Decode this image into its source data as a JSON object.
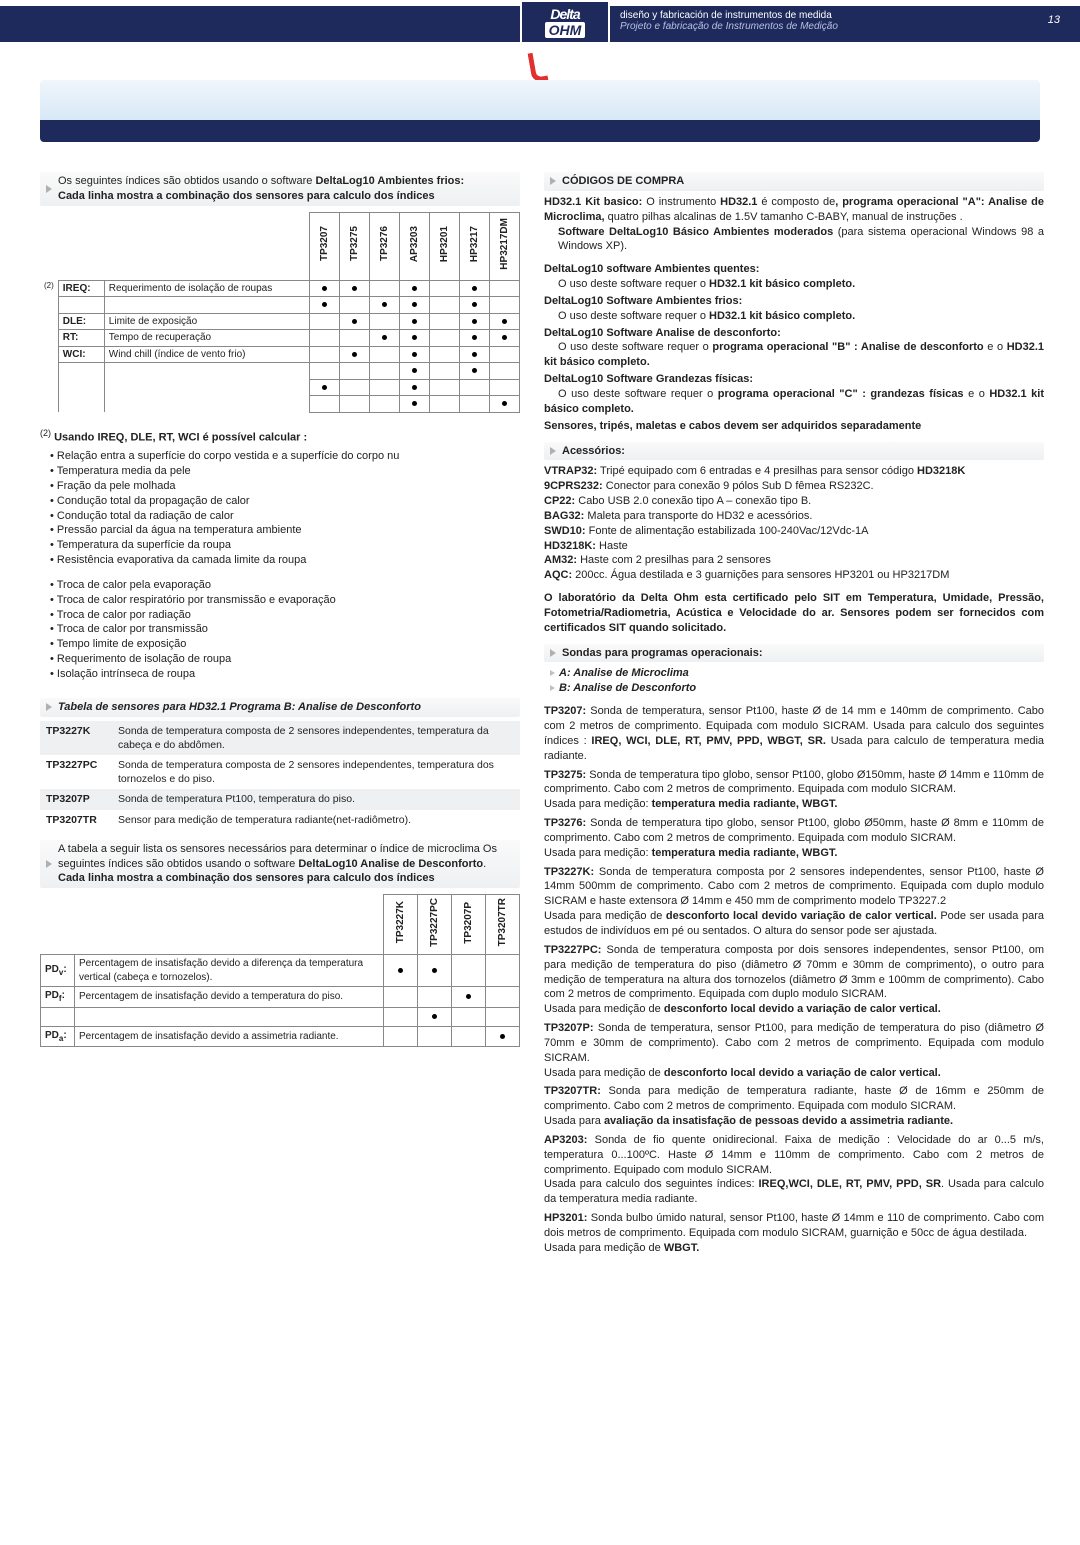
{
  "header": {
    "tagline_es": "diseño y fabricación de instrumentos de medida",
    "tagline_pt": "Projeto e fabricação de Instrumentos de Medição",
    "logo_top": "Delta",
    "logo_bot": "OHM",
    "pagenum": "13"
  },
  "left": {
    "intro1": "Os seguintes índices são obtidos usando o software ",
    "intro1b": "DeltaLog10 Ambientes frios:",
    "intro2": "Cada linha mostra a combinação dos sensores para calculo dos índices",
    "tbl1": {
      "cols": [
        "TP3207",
        "TP3275",
        "TP3276",
        "AP3203",
        "HP3201",
        "HP3217",
        "HP3217DM"
      ],
      "rows": [
        {
          "note": "(2)",
          "lab": "IREQ:",
          "desc": "Requerimento de isolação de roupas",
          "dots": [
            1,
            1,
            0,
            1,
            0,
            1,
            0
          ]
        },
        {
          "note": "",
          "lab": "",
          "desc": "",
          "dots": [
            1,
            0,
            1,
            1,
            0,
            1,
            0
          ]
        },
        {
          "note": "",
          "lab": "DLE:",
          "desc": "Limite de exposição",
          "dots": [
            0,
            1,
            0,
            1,
            0,
            1,
            1
          ]
        },
        {
          "note": "",
          "lab": "RT:",
          "desc": "Tempo de recuperação",
          "dots": [
            0,
            0,
            1,
            1,
            0,
            1,
            1
          ]
        },
        {
          "note": "",
          "lab": "WCI:",
          "desc": "Wind chill (índice de vento frio)",
          "dots": [
            0,
            1,
            0,
            1,
            0,
            1,
            0
          ]
        },
        {
          "note": "",
          "lab": "",
          "desc": "",
          "dots": [
            0,
            0,
            0,
            1,
            0,
            1,
            0
          ]
        },
        {
          "note": "",
          "lab": "",
          "desc": "",
          "dots": [
            1,
            0,
            0,
            1,
            0,
            0,
            0
          ]
        },
        {
          "note": "",
          "lab": "",
          "desc": "",
          "dots": [
            0,
            0,
            0,
            1,
            0,
            0,
            1
          ]
        }
      ]
    },
    "calc_head": "Usando IREQ, DLE, RT, WCI é possível calcular :",
    "calc_note": "(2)",
    "calc_list1": [
      "Relação entra a superfície do corpo vestida e a superfície do corpo nu",
      "Temperatura media da pele",
      "Fração da pele molhada",
      "Condução total da propagação de calor",
      "Condução total da radiação de calor",
      "Pressão parcial da água na temperatura ambiente",
      "Temperatura da superfície da roupa",
      "Resistência evaporativa da camada limite da roupa"
    ],
    "calc_list2": [
      "Troca de calor pela evaporação",
      "Troca de calor respiratório por transmissão e evaporação",
      "Troca de calor por radiação",
      "Troca de calor por transmissão",
      "Tempo limite de exposição",
      "Requerimento de isolação de roupa",
      "Isolação intrínseca de roupa"
    ],
    "senB_title": "Tabela de sensores para HD32.1 Programa B: Analise de Desconforto",
    "senB": [
      {
        "code": "TP3227K",
        "desc": "Sonda de temperatura composta de 2 sensores independentes, temperatura da cabeça e do abdômen."
      },
      {
        "code": "TP3227PC",
        "desc": "Sonda de temperatura composta de 2 sensores independentes, temperatura dos tornozelos e do piso."
      },
      {
        "code": "TP3207P",
        "desc": "Sonda de temperatura Pt100,  temperatura do piso."
      },
      {
        "code": "TP3207TR",
        "desc": "Sensor para medição de temperatura radiante(net-radiômetro)."
      }
    ],
    "desc_intro1": "A tabela a seguir lista os sensores necessários para determinar o índice de microclima Os seguintes  índices são obtidos usando o software  ",
    "desc_intro1b": "DeltaLog10 Analise de Desconforto",
    "desc_intro2": "Cada linha mostra a combinação dos sensores para calculo dos índices",
    "pd": {
      "cols": [
        "TP3227K",
        "TP3227PC",
        "TP3207P",
        "TP3207TR"
      ],
      "rows": [
        {
          "lab": "PD",
          "sub": "v",
          "desc": "Percentagem de insatisfação devido a diferença da temperatura vertical (cabeça e tornozelos).",
          "dots": [
            1,
            1,
            0,
            0
          ]
        },
        {
          "lab": "PD",
          "sub": "f",
          "desc": "Percentagem de insatisfação devido a temperatura do piso.",
          "dots": [
            0,
            0,
            1,
            0
          ]
        },
        {
          "lab": "",
          "sub": "",
          "desc": "",
          "dots": [
            0,
            1,
            0,
            0
          ]
        },
        {
          "lab": "PD",
          "sub": "a",
          "desc": "Percentagem de insatisfação devido a assimetria radiante.",
          "dots": [
            0,
            0,
            0,
            1
          ]
        }
      ]
    }
  },
  "right": {
    "cod_title": "CÓDIGOS DE COMPRA",
    "kit": {
      "h": "HD32.1 Kit basico:",
      "t1": " O instrumento ",
      "b1": "HD32.1",
      "t2": " é composto de",
      "b2": ", programa operacional \"A\": Analise de Microclima,",
      "t3": " quatro pilhas alcalinas de  1.5V tamanho C-BABY, manual de instruções .",
      "b3": "Software DeltaLog10 Básico Ambientes moderados",
      "t4": " (para sistema operacional Windows 98 a Windows XP)."
    },
    "sw": [
      {
        "h": "DeltaLog10 software Ambientes quentes:",
        "t": "O uso deste software requer o ",
        "b": "HD32.1 kit básico completo."
      },
      {
        "h": "DeltaLog10 Software Ambientes frios:",
        "t": "O uso deste software requer o ",
        "b": "HD32.1 kit básico completo."
      },
      {
        "h": "DeltaLog10 Software Analise de desconforto:",
        "t": "O uso deste software requer o ",
        "b": "programa operacional \"B\" : Analise de desconforto",
        "t2": " e o ",
        "b2": "HD32.1 kit básico completo."
      },
      {
        "h": "DeltaLog10 Software Grandezas físicas:",
        "t": "O uso deste software requer o ",
        "b": "programa operacional \"C\" : grandezas físicas",
        "t2": " e o ",
        "b2": "HD32.1 kit básico completo."
      }
    ],
    "sep_note": "Sensores, tripés, maletas e cabos devem ser adquiridos separadamente",
    "acc_title": "Acessórios:",
    "acc": [
      {
        "c": "VTRAP32:",
        "d": " Tripé equipado com 6 entradas e 4 presilhas para sensor código ",
        "b": "HD3218K"
      },
      {
        "c": "9CPRS232:",
        "d": " Conector para conexão 9 pólos Sub D fêmea RS232C."
      },
      {
        "c": "CP22:",
        "d": " Cabo USB 2.0 conexão tipo A – conexão tipo B."
      },
      {
        "c": "BAG32:",
        "d": " Maleta para transporte do HD32 e acessórios."
      },
      {
        "c": "SWD10:",
        "d": " Fonte de alimentação estabilizada 100-240Vac/12Vdc-1A"
      },
      {
        "c": "HD3218K:",
        "d": " Haste"
      },
      {
        "c": "AM32:",
        "d": " Haste com 2 presilhas para 2 sensores"
      },
      {
        "c": "AQC:",
        "d": " 200cc. Água destilada e 3 guarnições para sensores HP3201 ou HP3217DM"
      }
    ],
    "lab_cert": "O laboratório da Delta Ohm esta certificado pelo SIT em Temperatura, Umidade, Pressão, Fotometria/Radiometria, Acústica e Velocidade do ar. Sensores podem ser fornecidos com certificados SIT quando solicitado.",
    "sondas_title": "Sondas para programas operacionais:",
    "prog_a": "A: Analise de Microclima",
    "prog_b": "B: Analise de Desconforto",
    "probes": [
      {
        "c": "TP3207:",
        "d": " Sonda de temperatura, sensor Pt100, haste Ø de 14 mm e 140mm de comprimento. Cabo com 2 metros de comprimento. Equipada com modulo SICRAM. Usada para calculo dos seguintes índices : ",
        "b": "IREQ, WCI, DLE, RT, PMV, PPD, WBGT, SR.",
        "d2": " Usada para calculo de temperatura media radiante."
      },
      {
        "c": "TP3275:",
        "d": " Sonda de temperatura tipo globo, sensor Pt100, globo Ø150mm, haste Ø 14mm e 110mm de comprimento. Cabo com 2 metros de comprimento. Equipada com modulo SICRAM.",
        "nl": "Usada para medição: ",
        "b": "temperatura media radiante, WBGT."
      },
      {
        "c": "TP3276:",
        "d": " Sonda de temperatura tipo globo, sensor Pt100, globo Ø50mm, haste Ø 8mm e 110mm de comprimento. Cabo com 2 metros de comprimento. Equipada com modulo SICRAM.",
        "nl": "Usada para medição: ",
        "b": "temperatura media radiante, WBGT."
      },
      {
        "c": "TP3227K:",
        "d": " Sonda de temperatura composta por 2 sensores independentes, sensor Pt100, haste Ø 14mm 500mm de comprimento. Cabo com 2 metros de comprimento. Equipada com duplo modulo SICRAM e haste extensora Ø 14mm e 450 mm de comprimento modelo TP3227.2",
        "nl": "Usada para medição de ",
        "b": "desconforto local devido variação de calor vertical.",
        "d2": " Pode ser usada para estudos de indivíduos em pé ou sentados. O altura do sensor pode ser ajustada."
      },
      {
        "c": "TP3227PC:",
        "d": " Sonda de temperatura composta por dois sensores independentes, sensor Pt100, om para medição de temperatura do piso (diâmetro Ø 70mm e 30mm de comprimento), o outro para medição de temperatura na altura dos tornozelos (diâmetro Ø 3mm e 100mm de comprimento). Cabo com 2 metros de comprimento. Equipada com duplo modulo SICRAM.",
        "nl": "Usada para medição de ",
        "b": "desconforto local devido a variação de calor vertical."
      },
      {
        "c": "TP3207P:",
        "d": " Sonda de temperatura, sensor Pt100, para  medição de temperatura do piso (diâmetro Ø 70mm e 30mm de comprimento). Cabo com 2 metros de comprimento. Equipada com modulo SICRAM.",
        "nl": "Usada para medição de ",
        "b": "desconforto local devido a variação de calor vertical."
      },
      {
        "c": "TP3207TR:",
        "d": " Sonda para medição de temperatura radiante, haste Ø de 16mm e 250mm de comprimento. Cabo com 2 metros de comprimento. Equipada com modulo SICRAM.",
        "nl": "Usada para ",
        "b": "avaliação da insatisfação de pessoas devido a assimetria radiante."
      },
      {
        "c": "AP3203:",
        "d": " Sonda de fio quente onidirecional. Faixa de medição : Velocidade do ar 0...5 m/s, temperatura 0...100ºC. Haste Ø 14mm e 110mm de comprimento. Cabo com 2 metros de comprimento. Equipado com modulo SICRAM.",
        "nl": "Usada para calculo dos seguintes índices: ",
        "b": "IREQ,WCI, DLE, RT, PMV, PPD, SR",
        "d2": ". Usada para calculo da temperatura media radiante."
      },
      {
        "c": "HP3201:",
        "d": " Sonda bulbo úmido natural, sensor Pt100, haste Ø 14mm e 110 de comprimento. Cabo com dois metros de comprimento. Equipada com modulo SICRAM, guarnição e 50cc de água destilada.",
        "nl": "Usada para medição de ",
        "b": "WBGT."
      }
    ]
  }
}
